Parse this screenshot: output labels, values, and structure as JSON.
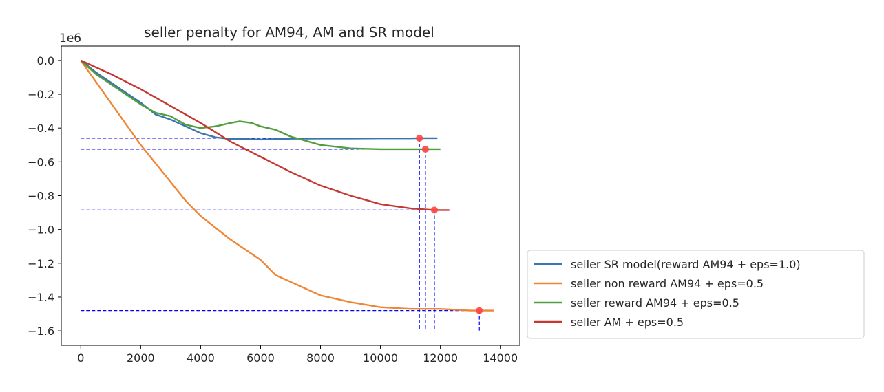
{
  "chart_data": {
    "type": "line",
    "title": "seller penalty for AM94, AM and SR model",
    "y_offset_text": "1e6",
    "xlabel": "",
    "ylabel": "",
    "xlim": [
      -650,
      14650
    ],
    "ylim": [
      -1.685,
      0.085
    ],
    "x_ticks": [
      0,
      2000,
      4000,
      6000,
      8000,
      10000,
      12000,
      14000
    ],
    "x_tick_labels": [
      "0",
      "2000",
      "4000",
      "6000",
      "8000",
      "10000",
      "12000",
      "14000"
    ],
    "y_ticks": [
      0.0,
      -0.2,
      -0.4,
      -0.6,
      -0.8,
      -1.0,
      -1.2,
      -1.4,
      -1.6
    ],
    "y_tick_labels": [
      "0.0",
      "−0.2",
      "−0.4",
      "−0.6",
      "−0.8",
      "−1.0",
      "−1.2",
      "−1.4",
      "−1.6"
    ],
    "grid": false,
    "legend_position": "outside-right-bottom",
    "series": [
      {
        "name": "seller SR model(reward AM94 + eps=1.0)",
        "color": "#3b75af",
        "points": [
          [
            0,
            0.0
          ],
          [
            500,
            -0.07
          ],
          [
            1000,
            -0.13
          ],
          [
            1500,
            -0.19
          ],
          [
            2000,
            -0.25
          ],
          [
            2500,
            -0.32
          ],
          [
            3000,
            -0.35
          ],
          [
            3500,
            -0.39
          ],
          [
            4000,
            -0.43
          ],
          [
            4500,
            -0.455
          ],
          [
            5000,
            -0.465
          ],
          [
            5500,
            -0.465
          ],
          [
            6000,
            -0.468
          ],
          [
            7000,
            -0.463
          ],
          [
            8000,
            -0.462
          ],
          [
            9000,
            -0.462
          ],
          [
            10000,
            -0.461
          ],
          [
            11000,
            -0.461
          ],
          [
            11300,
            -0.46
          ],
          [
            11900,
            -0.46
          ]
        ]
      },
      {
        "name": "seller non reward AM94 + eps=0.5",
        "color": "#ef8636",
        "points": [
          [
            0,
            0.0
          ],
          [
            1000,
            -0.25
          ],
          [
            2000,
            -0.5
          ],
          [
            3000,
            -0.72
          ],
          [
            3500,
            -0.83
          ],
          [
            4000,
            -0.92
          ],
          [
            5000,
            -1.06
          ],
          [
            6000,
            -1.18
          ],
          [
            6500,
            -1.27
          ],
          [
            7000,
            -1.31
          ],
          [
            8000,
            -1.39
          ],
          [
            9000,
            -1.43
          ],
          [
            10000,
            -1.46
          ],
          [
            11000,
            -1.47
          ],
          [
            12000,
            -1.47
          ],
          [
            13000,
            -1.48
          ],
          [
            13300,
            -1.48
          ],
          [
            13800,
            -1.48
          ]
        ]
      },
      {
        "name": "seller reward AM94 + eps=0.5",
        "color": "#519e3e",
        "points": [
          [
            0,
            0.0
          ],
          [
            500,
            -0.08
          ],
          [
            1000,
            -0.14
          ],
          [
            1500,
            -0.2
          ],
          [
            2000,
            -0.26
          ],
          [
            2500,
            -0.31
          ],
          [
            3000,
            -0.33
          ],
          [
            3500,
            -0.38
          ],
          [
            4000,
            -0.4
          ],
          [
            4500,
            -0.39
          ],
          [
            5000,
            -0.37
          ],
          [
            5300,
            -0.36
          ],
          [
            5700,
            -0.37
          ],
          [
            6000,
            -0.39
          ],
          [
            6500,
            -0.41
          ],
          [
            7000,
            -0.45
          ],
          [
            8000,
            -0.5
          ],
          [
            9000,
            -0.52
          ],
          [
            10000,
            -0.525
          ],
          [
            11000,
            -0.525
          ],
          [
            11500,
            -0.525
          ],
          [
            12000,
            -0.525
          ]
        ]
      },
      {
        "name": "seller AM + eps=0.5",
        "color": "#c53932",
        "points": [
          [
            0,
            0.0
          ],
          [
            1000,
            -0.08
          ],
          [
            2000,
            -0.17
          ],
          [
            3000,
            -0.27
          ],
          [
            4000,
            -0.37
          ],
          [
            5000,
            -0.48
          ],
          [
            6000,
            -0.57
          ],
          [
            7000,
            -0.66
          ],
          [
            8000,
            -0.74
          ],
          [
            9000,
            -0.8
          ],
          [
            10000,
            -0.85
          ],
          [
            11000,
            -0.875
          ],
          [
            11800,
            -0.885
          ],
          [
            12300,
            -0.885
          ]
        ]
      }
    ],
    "marker_color": "#ff4444",
    "guide_color": "#0000ff",
    "markers": [
      {
        "x": 11300,
        "y": -0.46
      },
      {
        "x": 11500,
        "y": -0.525
      },
      {
        "x": 11800,
        "y": -0.885
      },
      {
        "x": 13300,
        "y": -1.48
      }
    ]
  }
}
